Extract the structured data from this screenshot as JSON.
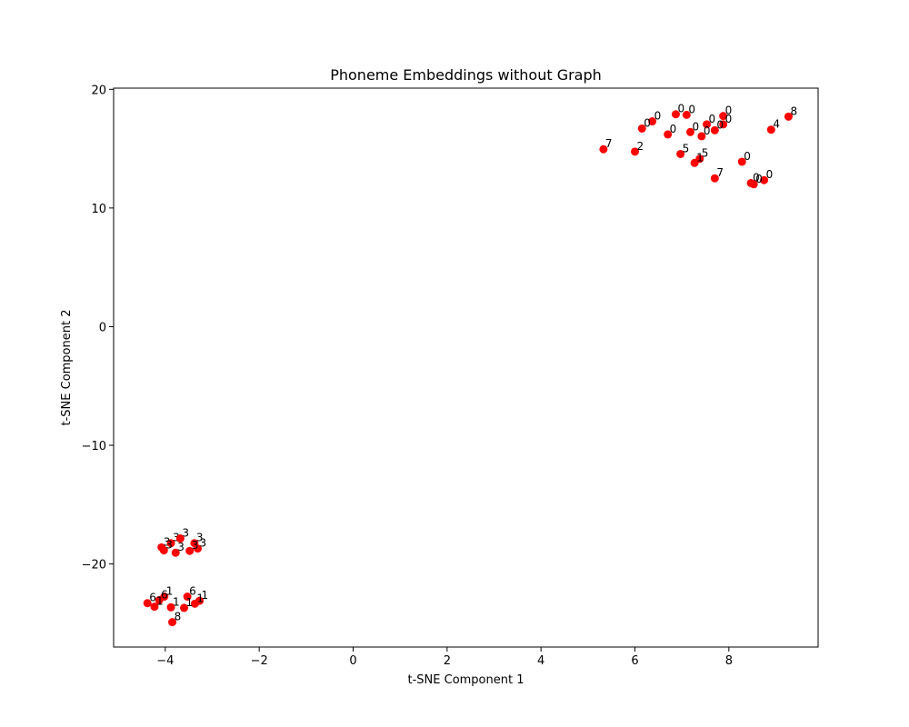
{
  "chart_data": {
    "type": "scatter",
    "title": "Phoneme Embeddings without Graph",
    "xlabel": "t-SNE Component 1",
    "ylabel": "t-SNE Component 2",
    "xlim": [
      -5.1,
      9.9
    ],
    "ylim": [
      -27,
      20.1
    ],
    "xticks": [
      -4,
      -2,
      0,
      2,
      4,
      6,
      8
    ],
    "yticks": [
      -20,
      -10,
      0,
      10,
      20
    ],
    "xtick_labels": [
      "−4",
      "−2",
      "0",
      "2",
      "4",
      "6",
      "8"
    ],
    "ytick_labels": [
      "−20",
      "−10",
      "0",
      "10",
      "20"
    ],
    "grid": false,
    "marker_color": "#ff0000",
    "points": [
      {
        "x": 6.87,
        "y": 17.9,
        "label": "0"
      },
      {
        "x": 7.1,
        "y": 17.85,
        "label": "0"
      },
      {
        "x": 7.88,
        "y": 17.75,
        "label": "0"
      },
      {
        "x": 6.37,
        "y": 17.3,
        "label": "0"
      },
      {
        "x": 6.15,
        "y": 16.7,
        "label": "0"
      },
      {
        "x": 7.53,
        "y": 17.05,
        "label": "0"
      },
      {
        "x": 7.88,
        "y": 17.05,
        "label": "0"
      },
      {
        "x": 7.7,
        "y": 16.55,
        "label": "0"
      },
      {
        "x": 7.18,
        "y": 16.4,
        "label": "0"
      },
      {
        "x": 6.7,
        "y": 16.2,
        "label": "0"
      },
      {
        "x": 7.42,
        "y": 16.05,
        "label": "0"
      },
      {
        "x": 9.27,
        "y": 17.7,
        "label": "8"
      },
      {
        "x": 8.9,
        "y": 16.6,
        "label": "4"
      },
      {
        "x": 5.33,
        "y": 14.95,
        "label": "7"
      },
      {
        "x": 6.0,
        "y": 14.75,
        "label": "2"
      },
      {
        "x": 6.97,
        "y": 14.55,
        "label": "5"
      },
      {
        "x": 7.38,
        "y": 14.15,
        "label": "5"
      },
      {
        "x": 7.27,
        "y": 13.8,
        "label": "1"
      },
      {
        "x": 8.28,
        "y": 13.9,
        "label": "0"
      },
      {
        "x": 7.7,
        "y": 12.5,
        "label": "7"
      },
      {
        "x": 8.75,
        "y": 12.35,
        "label": "0"
      },
      {
        "x": 8.47,
        "y": 12.1,
        "label": "0"
      },
      {
        "x": 8.53,
        "y": 12.0,
        "label": "0"
      },
      {
        "x": -4.08,
        "y": -18.6,
        "label": "3"
      },
      {
        "x": -3.88,
        "y": -18.25,
        "label": "3"
      },
      {
        "x": -3.68,
        "y": -17.85,
        "label": "3"
      },
      {
        "x": -3.38,
        "y": -18.25,
        "label": "3"
      },
      {
        "x": -3.31,
        "y": -18.7,
        "label": "3"
      },
      {
        "x": -3.48,
        "y": -18.9,
        "label": "3"
      },
      {
        "x": -3.78,
        "y": -19.05,
        "label": "3"
      },
      {
        "x": -4.03,
        "y": -18.85,
        "label": "3"
      },
      {
        "x": -4.02,
        "y": -22.75,
        "label": "1"
      },
      {
        "x": -3.53,
        "y": -22.75,
        "label": "6"
      },
      {
        "x": -3.27,
        "y": -23.1,
        "label": "1"
      },
      {
        "x": -3.37,
        "y": -23.35,
        "label": "1"
      },
      {
        "x": -4.13,
        "y": -23.05,
        "label": "6"
      },
      {
        "x": -4.38,
        "y": -23.3,
        "label": "6"
      },
      {
        "x": -4.23,
        "y": -23.6,
        "label": "1"
      },
      {
        "x": -3.88,
        "y": -23.65,
        "label": "1"
      },
      {
        "x": -3.6,
        "y": -23.7,
        "label": "1"
      },
      {
        "x": -3.85,
        "y": -24.9,
        "label": "8"
      }
    ]
  }
}
